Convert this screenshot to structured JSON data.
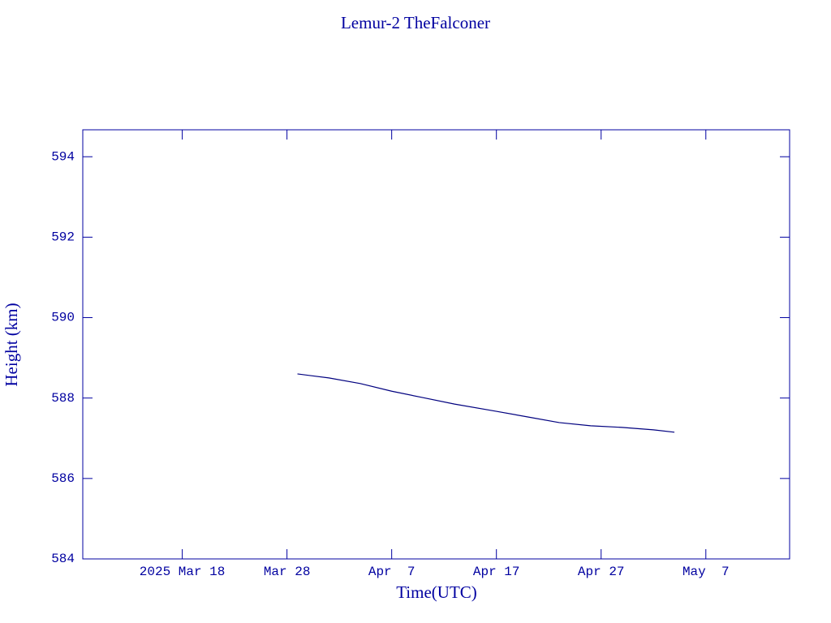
{
  "chart_data": {
    "type": "line",
    "title": "Lemur-2 TheFalconer",
    "x_label": "Time(UTC)",
    "y_label": "Height (km)",
    "x": [
      "2025-03-29",
      "2025-04-01",
      "2025-04-04",
      "2025-04-07",
      "2025-04-10",
      "2025-04-13",
      "2025-04-17",
      "2025-04-20",
      "2025-04-23",
      "2025-04-26",
      "2025-04-29",
      "2025-05-02",
      "2025-05-04"
    ],
    "series": [
      {
        "color": "#00007f",
        "values": [
          588.6,
          588.5,
          588.36,
          588.17,
          588.01,
          587.85,
          587.67,
          587.53,
          587.39,
          587.31,
          587.27,
          587.21,
          587.15
        ]
      }
    ],
    "xlim": [
      "2025-03-08T12:00",
      "2025-05-15T00:00"
    ],
    "xticks": [
      {
        "value": "2025-03-18",
        "label": "2025 Mar 18"
      },
      {
        "value": "2025-03-28",
        "label": "Mar 28"
      },
      {
        "value": "2025-04-07",
        "label": "Apr  7"
      },
      {
        "value": "2025-04-17",
        "label": "Apr 17"
      },
      {
        "value": "2025-04-27",
        "label": "Apr 27"
      },
      {
        "value": "2025-05-07",
        "label": "May  7"
      }
    ],
    "ylim": [
      584,
      594.67
    ],
    "yticks": [
      584,
      586,
      588,
      590,
      592,
      594
    ]
  }
}
